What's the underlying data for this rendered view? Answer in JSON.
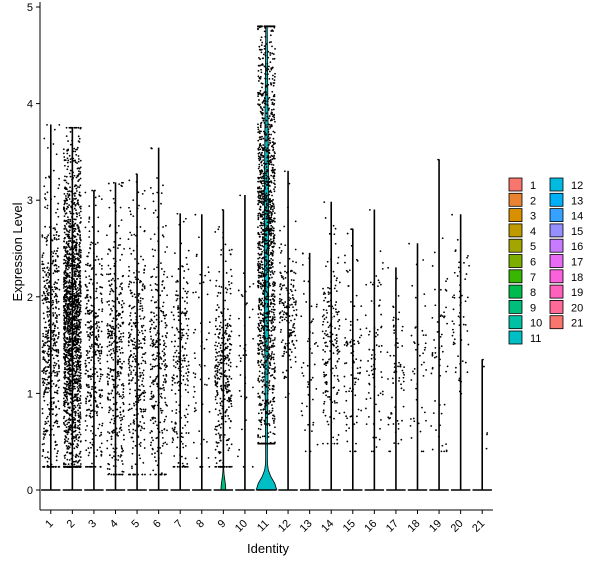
{
  "chart_data": {
    "type": "violin",
    "xlabel": "Identity",
    "ylabel": "Expression Level",
    "ylim": [
      -0.2,
      5.05
    ],
    "yticks": [
      0,
      1,
      2,
      3,
      4,
      5
    ],
    "grid": false,
    "legend_position": "right",
    "categories": [
      "1",
      "2",
      "3",
      "4",
      "5",
      "6",
      "7",
      "8",
      "9",
      "10",
      "11",
      "12",
      "13",
      "14",
      "15",
      "16",
      "17",
      "18",
      "19",
      "20",
      "21"
    ],
    "colors": [
      "#F8766D",
      "#EA8331",
      "#D89000",
      "#C09B00",
      "#A3A500",
      "#7CAE00",
      "#39B600",
      "#00BB4E",
      "#00BF7D",
      "#00C1A3",
      "#00BFC4",
      "#00BAE0",
      "#00B0F6",
      "#35A2FF",
      "#9590FF",
      "#C77CFF",
      "#E76BF3",
      "#FA62DB",
      "#FF62BC",
      "#FF6A98",
      "#F8766D"
    ],
    "max_expression": [
      3.78,
      3.75,
      3.1,
      3.18,
      3.27,
      3.54,
      2.86,
      2.85,
      2.9,
      3.05,
      4.8,
      3.3,
      2.45,
      2.98,
      2.7,
      2.9,
      2.3,
      2.55,
      3.42,
      2.85,
      1.35
    ],
    "expressing_points": [
      520,
      1800,
      360,
      380,
      320,
      300,
      220,
      60,
      330,
      40,
      1400,
      170,
      50,
      180,
      90,
      80,
      70,
      45,
      60,
      60,
      5
    ],
    "expressed_range": [
      [
        0.3,
        2.7
      ],
      [
        0.3,
        3.0
      ],
      [
        0.3,
        2.5
      ],
      [
        0.2,
        2.4
      ],
      [
        0.2,
        2.4
      ],
      [
        0.2,
        2.4
      ],
      [
        0.3,
        2.3
      ],
      [
        0.3,
        2.3
      ],
      [
        0.3,
        2.0
      ],
      [
        0.3,
        2.3
      ],
      [
        0.6,
        4.4
      ],
      [
        1.2,
        2.4
      ],
      [
        0.5,
        2.0
      ],
      [
        0.6,
        2.3
      ],
      [
        0.5,
        2.2
      ],
      [
        0.5,
        2.2
      ],
      [
        0.5,
        2.0
      ],
      [
        0.5,
        2.0
      ],
      [
        0.5,
        2.2
      ],
      [
        1.2,
        2.4
      ],
      [
        0.3,
        1.3
      ]
    ],
    "density_peak_at_zero": [
      0.015,
      0.01,
      0.012,
      0.012,
      0.012,
      0.012,
      0.012,
      0.012,
      0.15,
      0.01,
      0.62,
      0.01,
      0.01,
      0.01,
      0.01,
      0.01,
      0.01,
      0.01,
      0.01,
      0.01,
      0.01
    ],
    "density_body": [
      0.005,
      0.006,
      0.003,
      0.003,
      0.003,
      0.003,
      0.002,
      0.001,
      0.02,
      0.001,
      0.14,
      0.002,
      0.001,
      0.002,
      0.001,
      0.001,
      0.001,
      0.001,
      0.001,
      0.001,
      0.0005
    ]
  }
}
